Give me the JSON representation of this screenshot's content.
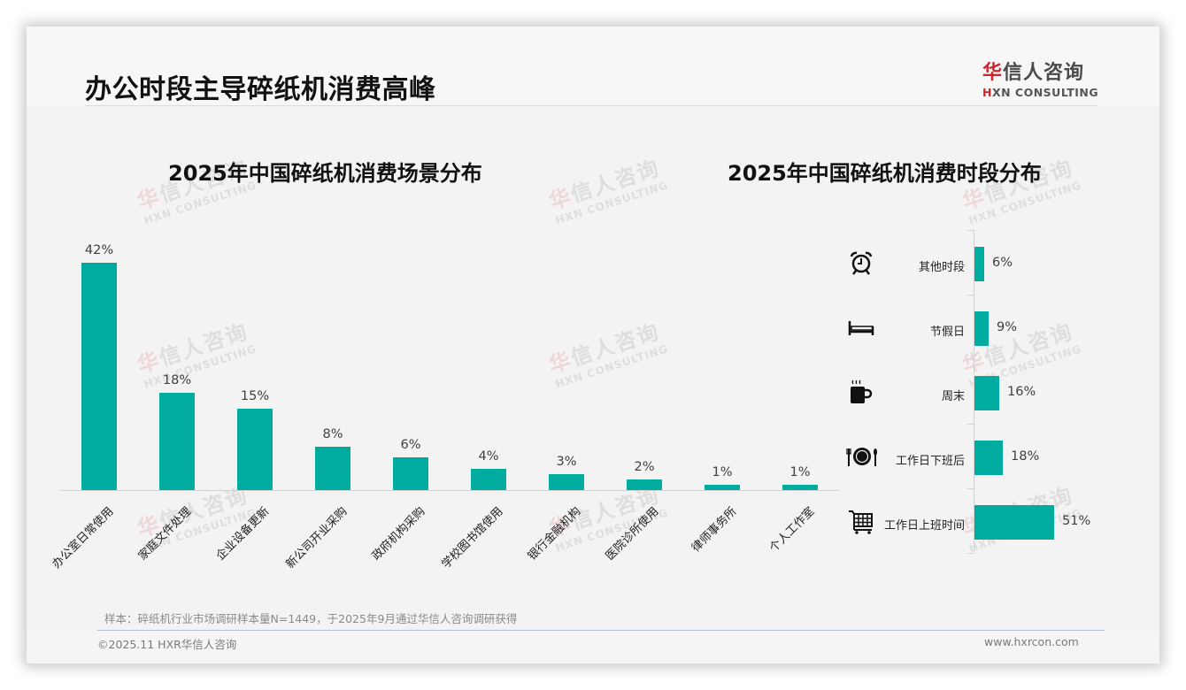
{
  "page": {
    "title": "办公时段主导碎纸机消费高峰",
    "logo": {
      "cn_accent": "华",
      "cn_rest": "信人咨询",
      "en_accent": "H",
      "en_rest": "XN CONSULTING"
    },
    "watermark": {
      "cn_accent": "华",
      "cn_rest": "信人咨询",
      "en": "HXN CONSULTING"
    },
    "note": "样本：碎纸机行业市场调研样本量N=1449，于2025年9月通过华信人咨询调研获得",
    "copyright": "©2025.11 HXR华信人咨询",
    "website": "www.hxrcon.com"
  },
  "colors": {
    "bar": "#00aba0",
    "brand_red": "#d0262b",
    "background": "#f3f3f3"
  },
  "chart_data": [
    {
      "type": "bar",
      "title": "2025年中国碎纸机消费场景分布",
      "categories": [
        "办公室日常使用",
        "家庭文件处理",
        "企业设备更新",
        "新公司开业采购",
        "政府机构采购",
        "学校图书馆使用",
        "银行金融机构",
        "医院诊所使用",
        "律师事务所",
        "个人工作室"
      ],
      "values": [
        42,
        18,
        15,
        8,
        6,
        4,
        3,
        2,
        1,
        1
      ],
      "value_labels": [
        "42%",
        "18%",
        "15%",
        "8%",
        "6%",
        "4%",
        "3%",
        "2%",
        "1%",
        "1%"
      ],
      "xlabel": "",
      "ylabel": "",
      "unit": "%",
      "grid": false,
      "legend": "none",
      "orientation": "vertical"
    },
    {
      "type": "bar",
      "title": "2025年中国碎纸机消费时段分布",
      "categories": [
        "其他时段",
        "节假日",
        "周末",
        "工作日下班后",
        "工作日上班时间"
      ],
      "values": [
        6,
        9,
        16,
        18,
        51
      ],
      "value_labels": [
        "6%",
        "9%",
        "16%",
        "18%",
        "51%"
      ],
      "icons": [
        "alarm-clock-icon",
        "bed-icon",
        "coffee-cup-icon",
        "dining-plate-icon",
        "shopping-cart-icon"
      ],
      "xlabel": "",
      "ylabel": "",
      "unit": "%",
      "grid": false,
      "legend": "none",
      "orientation": "horizontal"
    }
  ]
}
